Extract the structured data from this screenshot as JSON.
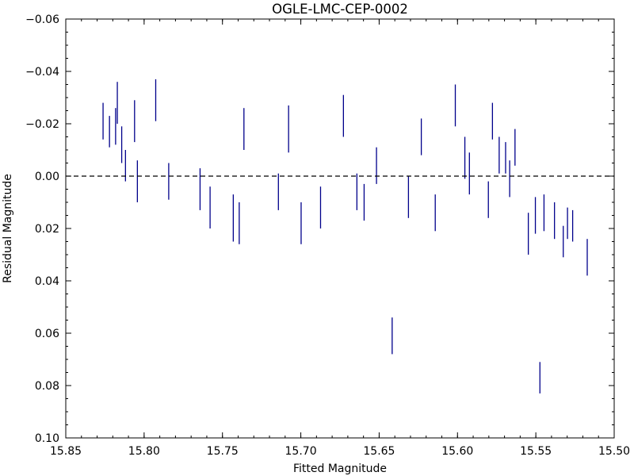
{
  "chart_data": {
    "type": "errorbar",
    "title": "OGLE-LMC-CEP-0002",
    "xlabel": "Fitted Magnitude",
    "ylabel": "Residual Magnitude",
    "xlim": [
      15.85,
      15.5
    ],
    "ylim": [
      0.1,
      -0.06
    ],
    "x_ticks": [
      15.85,
      15.8,
      15.75,
      15.7,
      15.65,
      15.6,
      15.55,
      15.5
    ],
    "x_tick_labels": [
      "15.85",
      "15.80",
      "15.75",
      "15.70",
      "15.65",
      "15.60",
      "15.55",
      "15.50"
    ],
    "y_ticks": [
      -0.06,
      -0.04,
      -0.02,
      0.0,
      0.02,
      0.04,
      0.06,
      0.08,
      0.1
    ],
    "y_tick_labels": [
      "−0.06",
      "−0.04",
      "−0.02",
      "0.00",
      "0.02",
      "0.04",
      "0.06",
      "0.08",
      "0.10"
    ],
    "reference_line": {
      "y": 0.0,
      "style": "dashed"
    },
    "grid": false,
    "series": [
      {
        "color": "#00008b",
        "marker": "vertical-bar",
        "x": [
          15.8262,
          15.8221,
          15.8182,
          15.8171,
          15.8143,
          15.8119,
          15.8061,
          15.8043,
          15.7926,
          15.7843,
          15.7643,
          15.7579,
          15.7431,
          15.7393,
          15.7363,
          15.7143,
          15.7078,
          15.6998,
          15.6874,
          15.6728,
          15.6642,
          15.6596,
          15.6517,
          15.6313,
          15.6231,
          15.6142,
          15.6014,
          15.5953,
          15.5924,
          15.5803,
          15.5777,
          15.5734,
          15.5693,
          15.5667,
          15.5633,
          15.5548,
          15.5503,
          15.5448,
          15.5381,
          15.5325,
          15.5298,
          15.5265,
          15.5172,
          15.5474,
          15.6417
        ],
        "y": [
          -0.021,
          -0.017,
          -0.019,
          -0.028,
          -0.012,
          -0.004,
          -0.021,
          0.002,
          -0.029,
          0.002,
          0.005,
          0.012,
          0.016,
          0.018,
          -0.018,
          0.006,
          -0.018,
          0.018,
          0.012,
          -0.023,
          0.006,
          0.01,
          -0.004,
          0.008,
          -0.015,
          0.014,
          -0.027,
          -0.007,
          -0.001,
          0.009,
          -0.021,
          -0.008,
          -0.007,
          0.001,
          -0.011,
          0.022,
          0.015,
          0.014,
          0.017,
          0.025,
          0.018,
          0.019,
          0.031,
          0.077,
          0.061
        ],
        "err": [
          0.007,
          0.006,
          0.007,
          0.008,
          0.007,
          0.006,
          0.008,
          0.008,
          0.008,
          0.007,
          0.008,
          0.008,
          0.009,
          0.008,
          0.008,
          0.007,
          0.009,
          0.008,
          0.008,
          0.008,
          0.007,
          0.007,
          0.007,
          0.008,
          0.007,
          0.007,
          0.008,
          0.008,
          0.008,
          0.007,
          0.007,
          0.007,
          0.006,
          0.007,
          0.007,
          0.008,
          0.007,
          0.007,
          0.007,
          0.006,
          0.006,
          0.006,
          0.007,
          0.006,
          0.007
        ]
      }
    ]
  }
}
